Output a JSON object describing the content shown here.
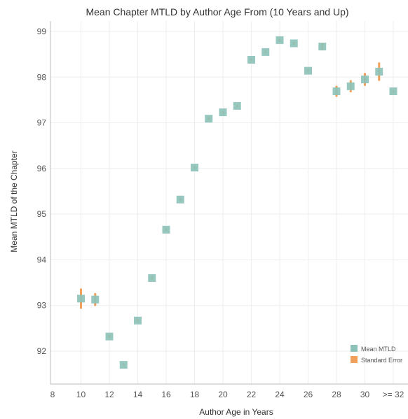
{
  "chart_data": {
    "type": "scatter",
    "title": "Mean Chapter MTLD by Author Age From (10 Years and Up)",
    "xlabel": "Author Age in Years",
    "ylabel": "Mean MTLD of the Chapter",
    "xlim": [
      8,
      32.5
    ],
    "ylim": [
      91.3,
      99.2
    ],
    "x_ticks": [
      {
        "value": 8,
        "label": "8"
      },
      {
        "value": 10,
        "label": "10"
      },
      {
        "value": 12,
        "label": "12"
      },
      {
        "value": 14,
        "label": "14"
      },
      {
        "value": 16,
        "label": "16"
      },
      {
        "value": 18,
        "label": "18"
      },
      {
        "value": 20,
        "label": "20"
      },
      {
        "value": 22,
        "label": "22"
      },
      {
        "value": 24,
        "label": "24"
      },
      {
        "value": 26,
        "label": "26"
      },
      {
        "value": 28,
        "label": "28"
      },
      {
        "value": 30,
        "label": "30"
      },
      {
        "value": 32,
        "label": ">= 32"
      }
    ],
    "y_ticks": [
      92,
      93,
      94,
      95,
      96,
      97,
      98,
      99
    ],
    "grid": true,
    "legend_position": "bottom-right",
    "legend": [
      {
        "label": "Mean MTLD",
        "color": "#8cc2b8"
      },
      {
        "label": "Standard Error",
        "color": "#f0a05a"
      }
    ],
    "series": [
      {
        "name": "Mean MTLD",
        "color": "#8cc2b8",
        "x": [
          10,
          11,
          12,
          13,
          14,
          15,
          16,
          17,
          18,
          19,
          20,
          21,
          22,
          23,
          24,
          25,
          26,
          27,
          28,
          29,
          30,
          31,
          32
        ],
        "y": [
          93.15,
          93.13,
          92.32,
          91.7,
          92.67,
          93.6,
          94.66,
          95.32,
          96.02,
          97.09,
          97.23,
          97.37,
          98.38,
          98.55,
          98.81,
          98.74,
          98.14,
          98.67,
          97.69,
          97.8,
          97.95,
          98.12,
          97.69
        ]
      },
      {
        "name": "Standard Error",
        "color": "#f0a05a",
        "x": [
          10,
          11,
          12,
          13,
          14,
          15,
          16,
          17,
          18,
          19,
          20,
          21,
          22,
          23,
          24,
          25,
          26,
          27,
          28,
          29,
          30,
          31,
          32
        ],
        "y": [
          93.15,
          93.13,
          92.32,
          91.7,
          92.67,
          93.6,
          94.66,
          95.32,
          96.02,
          97.09,
          97.23,
          97.37,
          98.38,
          98.55,
          98.81,
          98.74,
          98.14,
          98.67,
          97.69,
          97.8,
          97.95,
          98.12,
          97.69
        ],
        "error": [
          0.22,
          0.14,
          0.03,
          0.03,
          0.03,
          0.03,
          0.03,
          0.03,
          0.03,
          0.04,
          0.03,
          0.03,
          0.03,
          0.03,
          0.03,
          0.03,
          0.03,
          0.08,
          0.12,
          0.13,
          0.14,
          0.2,
          0.03
        ]
      }
    ]
  }
}
